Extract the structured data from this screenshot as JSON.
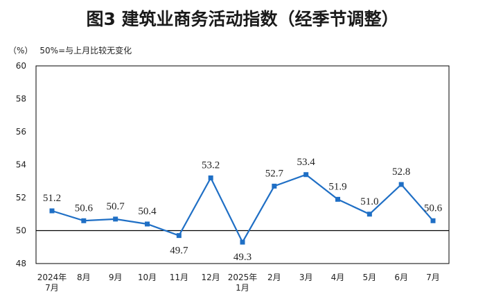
{
  "chart_data": {
    "type": "line",
    "title": "图3  建筑业商务活动指数（经季节调整）",
    "unit": "（%）",
    "note": "50%=与上月比较无变化",
    "categories": [
      [
        "2024年",
        "7月"
      ],
      [
        "8月"
      ],
      [
        "9月"
      ],
      [
        "10月"
      ],
      [
        "11月"
      ],
      [
        "12月"
      ],
      [
        "2025年",
        "1月"
      ],
      [
        "2月"
      ],
      [
        "3月"
      ],
      [
        "4月"
      ],
      [
        "5月"
      ],
      [
        "6月"
      ],
      [
        "7月"
      ]
    ],
    "series": [
      {
        "values": [
          51.2,
          50.6,
          50.7,
          50.4,
          49.7,
          53.2,
          49.3,
          52.7,
          53.4,
          51.9,
          51.0,
          52.8,
          50.6
        ]
      }
    ],
    "y_ticks": [
      "48",
      "50",
      "52",
      "54",
      "56",
      "58",
      "60"
    ],
    "ylim": [
      48,
      60
    ],
    "reference_line": 50,
    "data_labels": [
      "51.2",
      "50.6",
      "50.7",
      "50.4",
      "49.7",
      "53.2",
      "49.3",
      "52.7",
      "53.4",
      "51.9",
      "51.0",
      "52.8",
      "50.6"
    ],
    "label_positions": [
      "above",
      "above",
      "above",
      "above",
      "below",
      "above",
      "below",
      "above",
      "above",
      "above",
      "above",
      "above",
      "above"
    ],
    "colors": {
      "line": "#1f6fc5",
      "axis": "#000000"
    }
  }
}
